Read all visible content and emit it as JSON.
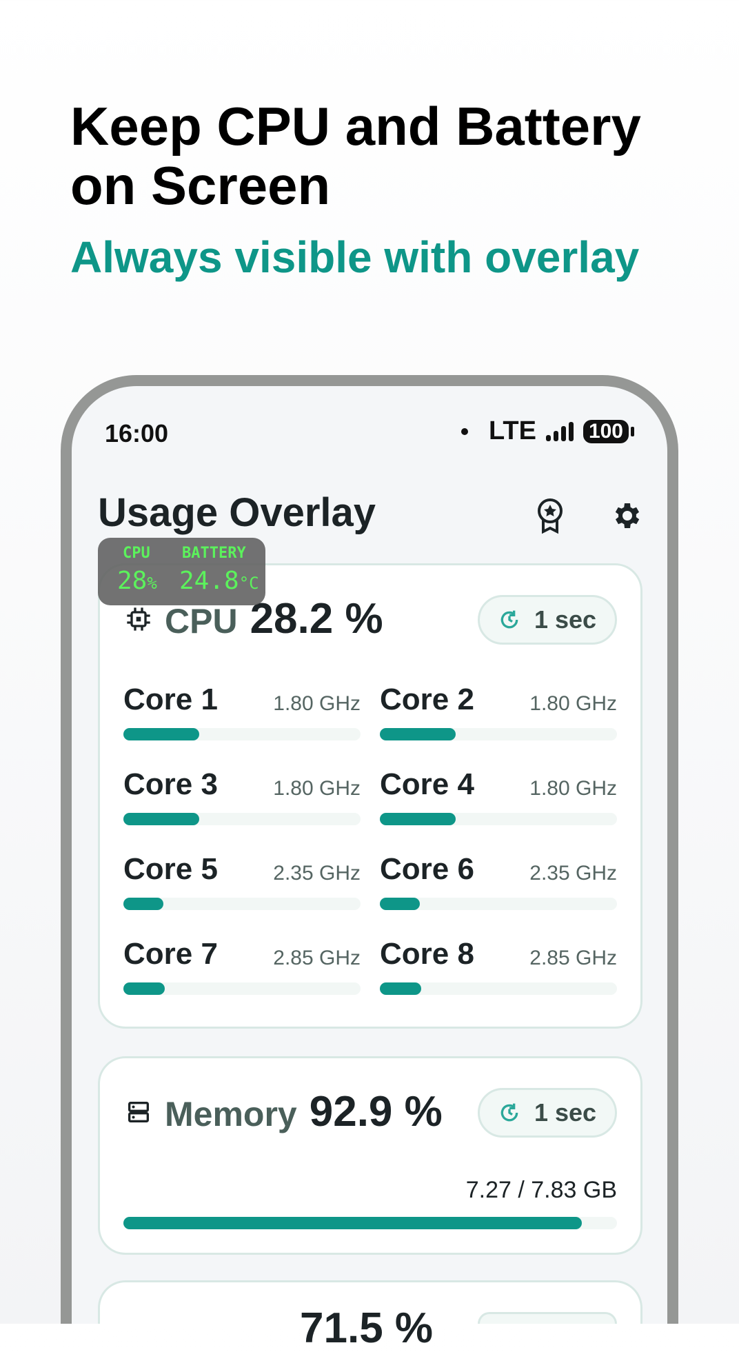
{
  "promo": {
    "headline": "Keep CPU and Battery on Screen",
    "subtitle": "Always visible with overlay",
    "accent": "#0e9688"
  },
  "status_bar": {
    "time": "16:00",
    "network": "LTE",
    "battery": "100"
  },
  "app": {
    "title": "Usage Overlay",
    "icons": [
      "award-icon",
      "gear-icon"
    ]
  },
  "overlay": {
    "cpu_label": "CPU",
    "cpu_value": "28",
    "cpu_unit": "%",
    "battery_label": "BATTERY",
    "battery_value": "24.8",
    "battery_unit": "°C"
  },
  "cpu": {
    "label": "CPU",
    "value": "28.2 %",
    "interval": "1 sec",
    "cores": [
      {
        "name": "Core 1",
        "freq": "1.80 GHz",
        "load_pct": 32
      },
      {
        "name": "Core 2",
        "freq": "1.80 GHz",
        "load_pct": 32
      },
      {
        "name": "Core 3",
        "freq": "1.80 GHz",
        "load_pct": 32
      },
      {
        "name": "Core 4",
        "freq": "1.80 GHz",
        "load_pct": 32
      },
      {
        "name": "Core 5",
        "freq": "2.35 GHz",
        "load_pct": 17
      },
      {
        "name": "Core 6",
        "freq": "2.35 GHz",
        "load_pct": 17
      },
      {
        "name": "Core 7",
        "freq": "2.85 GHz",
        "load_pct": 17.5
      },
      {
        "name": "Core 8",
        "freq": "2.85 GHz",
        "load_pct": 17.5
      }
    ]
  },
  "memory": {
    "label": "Memory",
    "value": "92.9 %",
    "interval": "1 sec",
    "usage": "7.27 / 7.83 GB",
    "used_pct": 92.9
  },
  "third_card": {
    "value": "71.5 %"
  }
}
